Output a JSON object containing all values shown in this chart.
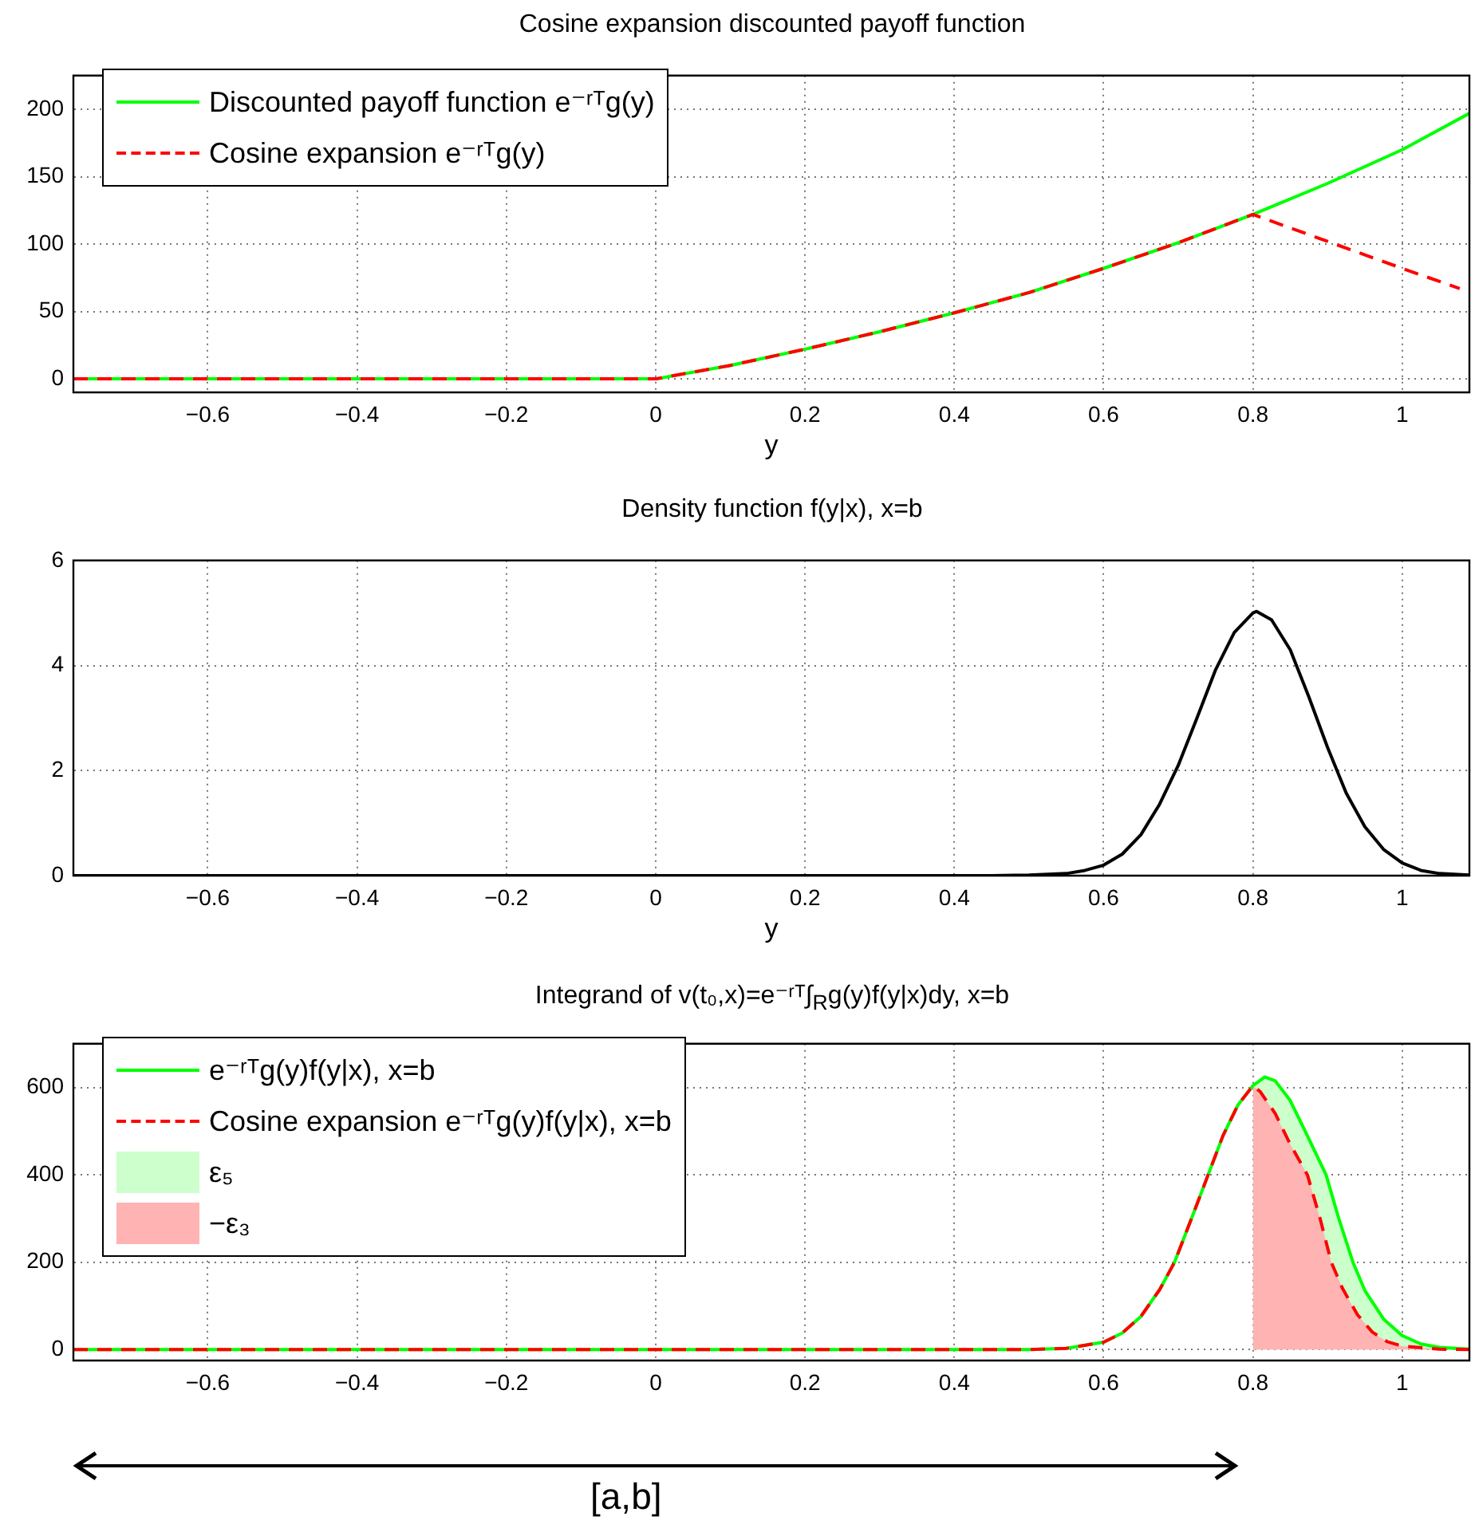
{
  "chart_data": [
    {
      "type": "line",
      "title": "Cosine expansion discounted payoff function",
      "xlabel": "y",
      "xlim": [
        -0.78,
        1.09
      ],
      "ylim": [
        -10,
        225
      ],
      "xticks": [
        {
          "value": -0.6,
          "label": "−0.6"
        },
        {
          "value": -0.4,
          "label": "−0.4"
        },
        {
          "value": -0.2,
          "label": "−0.2"
        },
        0,
        0.2,
        0.4,
        0.6,
        0.8,
        1
      ],
      "yticks": [
        0,
        50,
        100,
        150,
        200
      ],
      "grid": true,
      "legend": "top left",
      "series": [
        {
          "name": "Discounted payoff function e⁻ʳᵀg(y)",
          "color": "#00ff00",
          "x": [
            -0.78,
            0,
            0.1,
            0.2,
            0.3,
            0.4,
            0.5,
            0.6,
            0.7,
            0.8,
            0.9,
            1.0,
            1.09
          ],
          "values": [
            0,
            0,
            10,
            22,
            35,
            49,
            64,
            82,
            101,
            122,
            145,
            170,
            197
          ]
        },
        {
          "name": "Cosine expansion e⁻ʳᵀg(y)",
          "color": "#ff0000",
          "line_style": "dashed",
          "x": [
            -0.78,
            0,
            0.1,
            0.2,
            0.3,
            0.4,
            0.5,
            0.6,
            0.7,
            0.8,
            0.9,
            1.0,
            1.077
          ],
          "values": [
            0,
            0,
            10,
            22,
            35,
            49,
            64,
            82,
            101,
            122,
            102,
            82,
            67
          ]
        }
      ]
    },
    {
      "type": "line",
      "title": "Density function f(y|x), x=b",
      "xlabel": "y",
      "xlim": [
        -0.78,
        1.09
      ],
      "ylim": [
        0,
        6
      ],
      "xticks": [
        {
          "value": -0.6,
          "label": "−0.6"
        },
        {
          "value": -0.4,
          "label": "−0.4"
        },
        {
          "value": -0.2,
          "label": "−0.2"
        },
        0,
        0.2,
        0.4,
        0.6,
        0.8,
        1
      ],
      "yticks": [
        0,
        2,
        4,
        6
      ],
      "grid": true,
      "series": [
        {
          "color": "#000000",
          "x": [
            -0.78,
            0.45,
            0.5,
            0.55,
            0.575,
            0.6,
            0.625,
            0.65,
            0.675,
            0.7,
            0.725,
            0.75,
            0.775,
            0.8,
            0.805,
            0.825,
            0.85,
            0.875,
            0.9,
            0.925,
            0.95,
            0.975,
            1.0,
            1.025,
            1.05,
            1.09
          ],
          "values": [
            0,
            0,
            0.01,
            0.04,
            0.1,
            0.2,
            0.41,
            0.78,
            1.36,
            2.1,
            3.0,
            3.92,
            4.63,
            5.0,
            5.03,
            4.87,
            4.3,
            3.4,
            2.44,
            1.57,
            0.93,
            0.5,
            0.24,
            0.1,
            0.04,
            0.01
          ]
        }
      ]
    },
    {
      "type": "line",
      "title": "Integrand of v(t₀,x)=e⁻ʳᵀ∫$_{R}$g(y)f(y|x)dy, x=b",
      "xlim": [
        -0.78,
        1.09
      ],
      "ylim": [
        -25,
        700
      ],
      "xticks": [
        {
          "value": -0.6,
          "label": "−0.6"
        },
        {
          "value": -0.4,
          "label": "−0.4"
        },
        {
          "value": -0.2,
          "label": "−0.2"
        },
        0,
        0.2,
        0.4,
        0.6,
        0.8,
        1
      ],
      "yticks": [
        0,
        200,
        400,
        600
      ],
      "grid": true,
      "legend": "top left",
      "annotations": [
        "[a,b]"
      ],
      "series": [
        {
          "name": "e⁻ʳᵀg(y)f(y|x), x=b",
          "color": "#00ff00",
          "x": [
            -0.78,
            0.5,
            0.55,
            0.6,
            0.625,
            0.65,
            0.675,
            0.695,
            0.72,
            0.74,
            0.76,
            0.78,
            0.8,
            0.816,
            0.83,
            0.85,
            0.87,
            0.898,
            0.915,
            0.934,
            0.95,
            0.975,
            1.0,
            1.025,
            1.05,
            1.09
          ],
          "values": [
            0,
            0,
            3,
            17,
            38,
            76,
            137,
            200,
            310,
            400,
            490,
            560,
            604,
            624,
            615,
            570,
            500,
            400,
            300,
            200,
            135,
            70,
            32,
            13,
            5,
            1
          ]
        },
        {
          "name": "Cosine expansion e⁻ʳᵀg(y)f(y|x), x=b",
          "color": "#ff0000",
          "line_style": "dashed",
          "x": [
            -0.78,
            0.5,
            0.55,
            0.6,
            0.625,
            0.65,
            0.675,
            0.695,
            0.72,
            0.74,
            0.76,
            0.78,
            0.8,
            0.81,
            0.83,
            0.85,
            0.873,
            0.89,
            0.905,
            0.92,
            0.94,
            0.96,
            0.98,
            1.0,
            1.05,
            1.09
          ],
          "values": [
            0,
            0,
            3,
            17,
            38,
            76,
            137,
            200,
            310,
            400,
            490,
            560,
            604,
            590,
            540,
            470,
            400,
            300,
            200,
            140,
            80,
            40,
            18,
            8,
            1,
            0
          ]
        },
        {
          "name": "ε₅",
          "type": "area",
          "color": "#ccffcc",
          "x": [
            0.8,
            0.816,
            0.83,
            0.85,
            0.87,
            0.898,
            0.915,
            0.934,
            0.95,
            0.975,
            1.0,
            1.025,
            1.05,
            1.09
          ],
          "values": [
            604,
            624,
            615,
            570,
            500,
            400,
            300,
            200,
            135,
            70,
            32,
            13,
            5,
            1
          ]
        },
        {
          "name": "−ε₃",
          "type": "area",
          "color": "#ffb3b3",
          "x": [
            0.8,
            0.81,
            0.83,
            0.85,
            0.873,
            0.89,
            0.905,
            0.92,
            0.94,
            0.96,
            0.98,
            1.0,
            1.05,
            1.09
          ],
          "values": [
            604,
            590,
            540,
            470,
            400,
            300,
            200,
            140,
            80,
            40,
            18,
            8,
            1,
            0
          ]
        }
      ]
    }
  ]
}
